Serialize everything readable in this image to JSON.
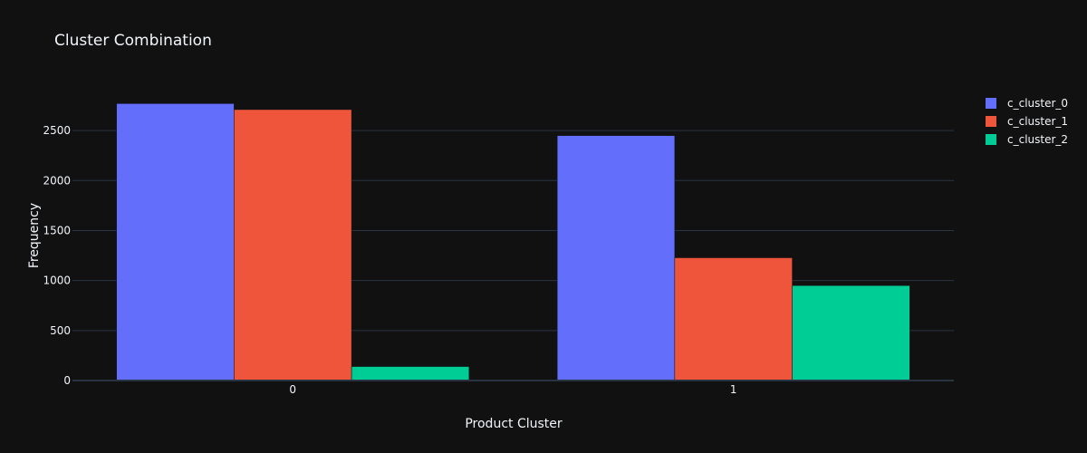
{
  "chart_data": {
    "type": "bar",
    "title": "Cluster Combination",
    "xlabel": "Product Cluster",
    "ylabel": "Frequency",
    "categories": [
      "0",
      "1"
    ],
    "ylim": [
      0,
      2900
    ],
    "yticks": [
      0,
      500,
      1000,
      1500,
      2000,
      2500
    ],
    "grid": true,
    "legend_position": "top-right",
    "series": [
      {
        "name": "c_cluster_0",
        "color": "#636efa",
        "values": [
          2770,
          2450
        ]
      },
      {
        "name": "c_cluster_1",
        "color": "#ef553b",
        "values": [
          2710,
          1228
        ]
      },
      {
        "name": "c_cluster_2",
        "color": "#00cc96",
        "values": [
          140,
          950
        ]
      }
    ]
  }
}
